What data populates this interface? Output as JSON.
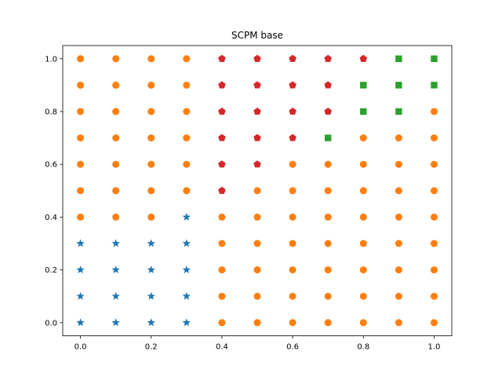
{
  "chart_data": {
    "type": "scatter",
    "title": "SCPM base",
    "xlabel": "",
    "ylabel": "",
    "xlim": [
      -0.05,
      1.05
    ],
    "ylim": [
      -0.05,
      1.05
    ],
    "xticks": [
      0.0,
      0.2,
      0.4,
      0.6,
      0.8,
      1.0
    ],
    "xtick_labels": [
      "0.0",
      "0.2",
      "0.4",
      "0.6",
      "0.8",
      "1.0"
    ],
    "yticks": [
      0.0,
      0.2,
      0.4,
      0.6,
      0.8,
      1.0
    ],
    "ytick_labels": [
      "0.0",
      "0.2",
      "0.4",
      "0.6",
      "0.8",
      "1.0"
    ],
    "grid": false,
    "legend": false,
    "series": [
      {
        "marker": "star",
        "color": "#1f77b4",
        "points": [
          [
            0.0,
            0.0
          ],
          [
            0.0,
            0.1
          ],
          [
            0.0,
            0.2
          ],
          [
            0.0,
            0.3
          ],
          [
            0.1,
            0.0
          ],
          [
            0.1,
            0.1
          ],
          [
            0.1,
            0.2
          ],
          [
            0.1,
            0.3
          ],
          [
            0.2,
            0.0
          ],
          [
            0.2,
            0.1
          ],
          [
            0.2,
            0.2
          ],
          [
            0.2,
            0.3
          ],
          [
            0.3,
            0.0
          ],
          [
            0.3,
            0.1
          ],
          [
            0.3,
            0.2
          ],
          [
            0.3,
            0.3
          ],
          [
            0.3,
            0.4
          ]
        ]
      },
      {
        "marker": "circle",
        "color": "#ff7f0e",
        "points": [
          [
            0.0,
            0.4
          ],
          [
            0.0,
            0.5
          ],
          [
            0.0,
            0.6
          ],
          [
            0.0,
            0.7
          ],
          [
            0.0,
            0.8
          ],
          [
            0.0,
            0.9
          ],
          [
            0.0,
            1.0
          ],
          [
            0.1,
            0.4
          ],
          [
            0.1,
            0.5
          ],
          [
            0.1,
            0.6
          ],
          [
            0.1,
            0.7
          ],
          [
            0.1,
            0.8
          ],
          [
            0.1,
            0.9
          ],
          [
            0.1,
            1.0
          ],
          [
            0.2,
            0.4
          ],
          [
            0.2,
            0.5
          ],
          [
            0.2,
            0.6
          ],
          [
            0.2,
            0.7
          ],
          [
            0.2,
            0.8
          ],
          [
            0.2,
            0.9
          ],
          [
            0.2,
            1.0
          ],
          [
            0.3,
            0.5
          ],
          [
            0.3,
            0.6
          ],
          [
            0.3,
            0.7
          ],
          [
            0.3,
            0.8
          ],
          [
            0.3,
            0.9
          ],
          [
            0.3,
            1.0
          ],
          [
            0.4,
            0.0
          ],
          [
            0.4,
            0.1
          ],
          [
            0.4,
            0.2
          ],
          [
            0.4,
            0.3
          ],
          [
            0.4,
            0.4
          ],
          [
            0.5,
            0.0
          ],
          [
            0.5,
            0.1
          ],
          [
            0.5,
            0.2
          ],
          [
            0.5,
            0.3
          ],
          [
            0.5,
            0.4
          ],
          [
            0.5,
            0.5
          ],
          [
            0.6,
            0.0
          ],
          [
            0.6,
            0.1
          ],
          [
            0.6,
            0.2
          ],
          [
            0.6,
            0.3
          ],
          [
            0.6,
            0.4
          ],
          [
            0.6,
            0.5
          ],
          [
            0.6,
            0.6
          ],
          [
            0.7,
            0.0
          ],
          [
            0.7,
            0.1
          ],
          [
            0.7,
            0.2
          ],
          [
            0.7,
            0.3
          ],
          [
            0.7,
            0.4
          ],
          [
            0.7,
            0.5
          ],
          [
            0.7,
            0.6
          ],
          [
            0.8,
            0.0
          ],
          [
            0.8,
            0.1
          ],
          [
            0.8,
            0.2
          ],
          [
            0.8,
            0.3
          ],
          [
            0.8,
            0.4
          ],
          [
            0.8,
            0.5
          ],
          [
            0.8,
            0.6
          ],
          [
            0.8,
            0.7
          ],
          [
            0.9,
            0.0
          ],
          [
            0.9,
            0.1
          ],
          [
            0.9,
            0.2
          ],
          [
            0.9,
            0.3
          ],
          [
            0.9,
            0.4
          ],
          [
            0.9,
            0.5
          ],
          [
            0.9,
            0.6
          ],
          [
            0.9,
            0.7
          ],
          [
            1.0,
            0.0
          ],
          [
            1.0,
            0.1
          ],
          [
            1.0,
            0.2
          ],
          [
            1.0,
            0.3
          ],
          [
            1.0,
            0.4
          ],
          [
            1.0,
            0.5
          ],
          [
            1.0,
            0.6
          ],
          [
            1.0,
            0.7
          ],
          [
            1.0,
            0.8
          ]
        ]
      },
      {
        "marker": "pentagon",
        "color": "#d62728",
        "points": [
          [
            0.4,
            0.5
          ],
          [
            0.4,
            0.6
          ],
          [
            0.4,
            0.7
          ],
          [
            0.4,
            0.8
          ],
          [
            0.4,
            0.9
          ],
          [
            0.4,
            1.0
          ],
          [
            0.5,
            0.6
          ],
          [
            0.5,
            0.7
          ],
          [
            0.5,
            0.8
          ],
          [
            0.5,
            0.9
          ],
          [
            0.5,
            1.0
          ],
          [
            0.6,
            0.7
          ],
          [
            0.6,
            0.8
          ],
          [
            0.6,
            0.9
          ],
          [
            0.6,
            1.0
          ],
          [
            0.7,
            0.8
          ],
          [
            0.7,
            0.9
          ],
          [
            0.7,
            1.0
          ],
          [
            0.8,
            1.0
          ]
        ]
      },
      {
        "marker": "square",
        "color": "#2ca02c",
        "points": [
          [
            0.7,
            0.7
          ],
          [
            0.8,
            0.8
          ],
          [
            0.8,
            0.9
          ],
          [
            0.9,
            0.8
          ],
          [
            0.9,
            0.9
          ],
          [
            0.9,
            1.0
          ],
          [
            1.0,
            0.9
          ],
          [
            1.0,
            1.0
          ]
        ]
      }
    ]
  }
}
